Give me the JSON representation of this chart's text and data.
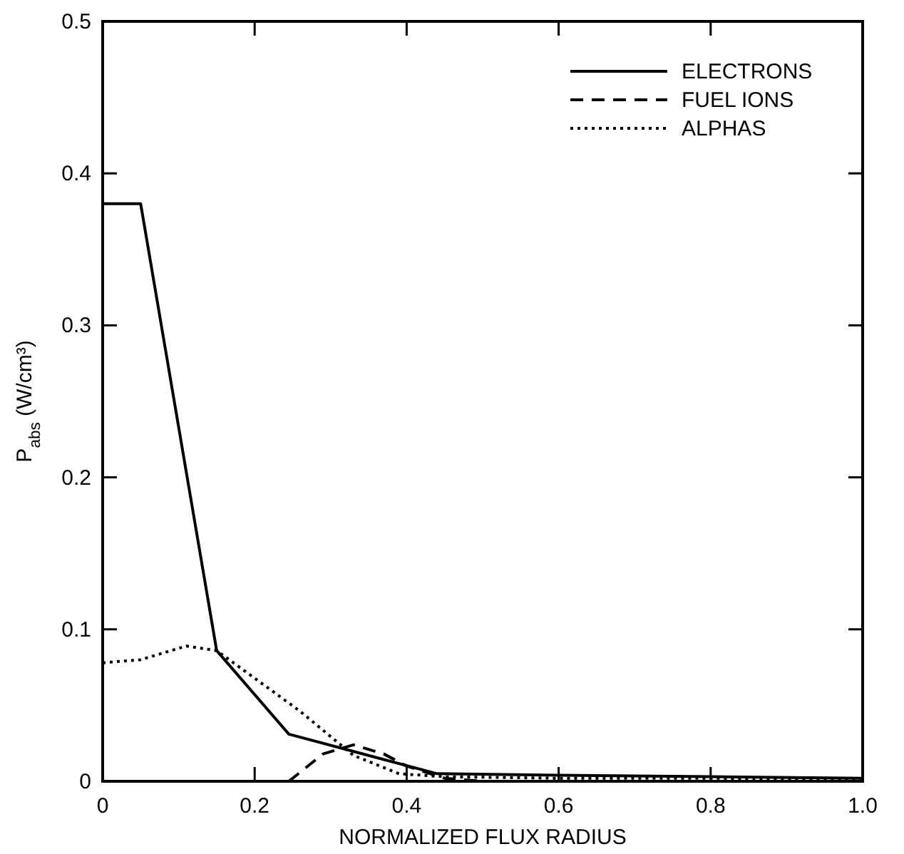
{
  "chart_data": {
    "type": "line",
    "xlabel": "NORMALIZED FLUX RADIUS",
    "ylabel": "P$_{abs}$ (W/cm³)",
    "xlim": [
      0,
      1.0
    ],
    "ylim": [
      0,
      0.5
    ],
    "xticks": [
      0,
      0.2,
      0.4,
      0.6,
      0.8,
      {
        "value": 1.0,
        "label": "1.0"
      }
    ],
    "yticks": [
      0,
      0.1,
      0.2,
      0.3,
      0.4,
      0.5
    ],
    "legend": "top right",
    "grid": false,
    "series": [
      {
        "name": "ELECTRONS",
        "color": "#000000",
        "line_style": "solid",
        "x": [
          0,
          0.05,
          0.15,
          0.245,
          0.44,
          0.6,
          0.8,
          1.0
        ],
        "values": [
          0.38,
          0.38,
          0.086,
          0.031,
          0.005,
          0.004,
          0.003,
          0.002
        ]
      },
      {
        "name": "FUEL IONS",
        "color": "#000000",
        "line_style": "dashed",
        "x": [
          0.245,
          0.29,
          0.33,
          0.37,
          0.4,
          0.45,
          0.5
        ],
        "values": [
          0,
          0.018,
          0.024,
          0.018,
          0.01,
          0.002,
          0
        ]
      },
      {
        "name": "ALPHAS",
        "color": "#000000",
        "line_style": "dotted",
        "x": [
          0,
          0.05,
          0.11,
          0.15,
          0.26,
          0.33,
          0.39,
          0.45,
          0.6,
          0.8,
          1.0
        ],
        "values": [
          0.078,
          0.08,
          0.089,
          0.086,
          0.046,
          0.017,
          0.005,
          0.003,
          0.002,
          0.002,
          0.001
        ]
      }
    ]
  }
}
